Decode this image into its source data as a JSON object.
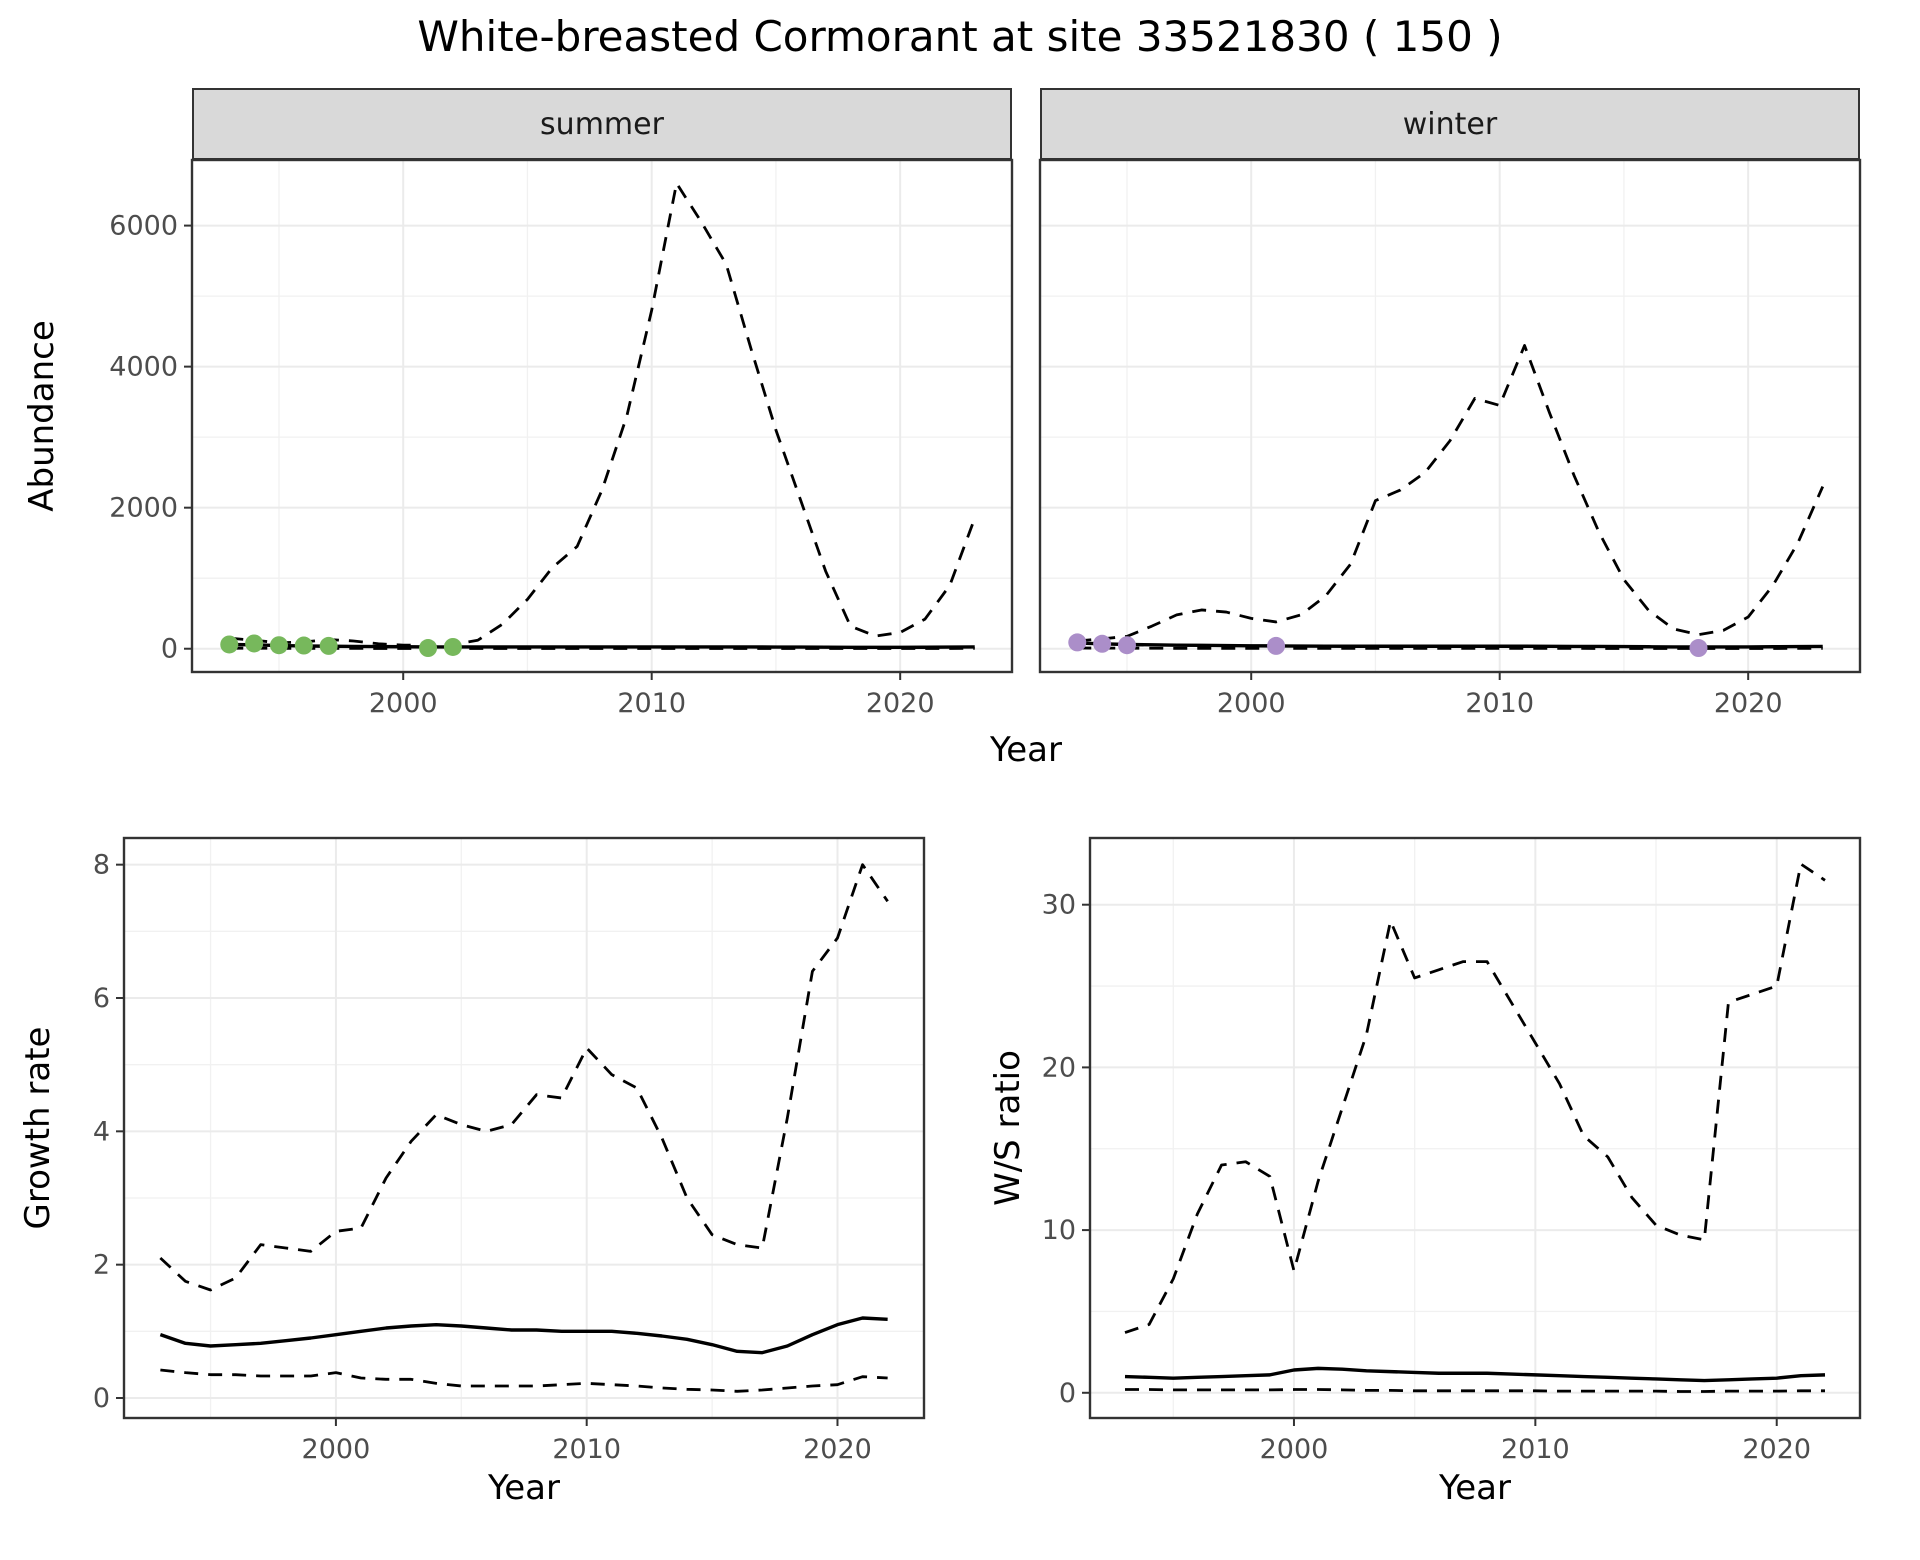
{
  "title": "White-breasted Cormorant at site 33521830 ( 150 )",
  "colors": {
    "summer_points": "#77b85c",
    "winter_points": "#ab8ec9",
    "line": "#000000",
    "strip_bg": "#d9d9d9",
    "grid_major": "#ebebeb",
    "grid_minor": "#f1f1f1",
    "panel_border": "#333333",
    "tick_label": "#4d4d4d"
  },
  "chart_data": [
    {
      "id": "abundance",
      "type": "line",
      "xlabel": "Year",
      "ylabel": "Abundance",
      "xlim": [
        1991.5,
        2024.5
      ],
      "ylim": [
        -330,
        6930
      ],
      "xticks": [
        2000,
        2010,
        2020
      ],
      "yticks": [
        0,
        2000,
        4000,
        6000
      ],
      "grid": true,
      "legend": "none",
      "years": [
        1993,
        1994,
        1995,
        1996,
        1997,
        1998,
        1999,
        2000,
        2001,
        2002,
        2003,
        2004,
        2005,
        2006,
        2007,
        2008,
        2009,
        2010,
        2011,
        2012,
        2013,
        2014,
        2015,
        2016,
        2017,
        2018,
        2019,
        2020,
        2021,
        2022,
        2023
      ],
      "panels": [
        {
          "label": "summer",
          "series": [
            {
              "name": "upper-ci",
              "style": "dashed",
              "values": [
                150,
                120,
                85,
                95,
                130,
                110,
                70,
                50,
                55,
                60,
                120,
                350,
                700,
                1150,
                1450,
                2250,
                3300,
                4800,
                6600,
                6050,
                5450,
                4250,
                3100,
                2100,
                1100,
                320,
                180,
                230,
                420,
                900,
                1850
              ]
            },
            {
              "name": "estimate",
              "style": "solid",
              "values": [
                60,
                55,
                45,
                40,
                35,
                32,
                30,
                28,
                26,
                25,
                25,
                25,
                25,
                25,
                25,
                25,
                25,
                25,
                25,
                25,
                25,
                25,
                24,
                23,
                22,
                20,
                20,
                20,
                21,
                23,
                25
              ]
            },
            {
              "name": "lower-ci",
              "style": "dashed",
              "values": [
                8,
                7,
                6,
                5,
                5,
                5,
                4,
                4,
                4,
                4,
                4,
                4,
                4,
                4,
                4,
                4,
                4,
                4,
                4,
                4,
                4,
                4,
                4,
                4,
                3,
                3,
                3,
                3,
                3,
                4,
                5
              ]
            }
          ],
          "points": {
            "name": "observed-counts",
            "color": "#77b85c",
            "data": [
              [
                1993,
                60
              ],
              [
                1994,
                75
              ],
              [
                1995,
                50
              ],
              [
                1996,
                45
              ],
              [
                1997,
                40
              ],
              [
                2001,
                10
              ],
              [
                2002,
                25
              ]
            ]
          }
        },
        {
          "label": "winter",
          "series": [
            {
              "name": "upper-ci",
              "style": "dashed",
              "values": [
                110,
                140,
                175,
                320,
                480,
                550,
                520,
                430,
                380,
                480,
                750,
                1200,
                2100,
                2250,
                2500,
                2950,
                3550,
                3450,
                4300,
                3350,
                2450,
                1650,
                980,
                540,
                280,
                200,
                260,
                450,
                900,
                1500,
                2300
              ]
            },
            {
              "name": "estimate",
              "style": "solid",
              "values": [
                80,
                70,
                60,
                55,
                50,
                48,
                45,
                42,
                40,
                38,
                36,
                35,
                35,
                35,
                35,
                35,
                35,
                35,
                35,
                34,
                33,
                32,
                30,
                28,
                26,
                25,
                25,
                26,
                28,
                30,
                32
              ]
            },
            {
              "name": "lower-ci",
              "style": "dashed",
              "values": [
                10,
                9,
                8,
                7,
                6,
                6,
                5,
                5,
                5,
                5,
                5,
                5,
                5,
                5,
                5,
                5,
                5,
                5,
                5,
                5,
                5,
                4,
                4,
                4,
                4,
                3,
                3,
                4,
                4,
                5,
                6
              ]
            }
          ],
          "points": {
            "name": "observed-counts",
            "color": "#ab8ec9",
            "data": [
              [
                1993,
                90
              ],
              [
                1994,
                70
              ],
              [
                1995,
                50
              ],
              [
                2001,
                40
              ],
              [
                2018,
                10
              ]
            ]
          }
        }
      ]
    },
    {
      "id": "growth-rate",
      "type": "line",
      "xlabel": "Year",
      "ylabel": "Growth rate",
      "xlim": [
        1991.55,
        2023.45
      ],
      "ylim": [
        -0.3,
        8.4
      ],
      "xticks": [
        2000,
        2010,
        2020
      ],
      "yticks": [
        0,
        2,
        4,
        6,
        8
      ],
      "grid": true,
      "legend": "none",
      "years": [
        1993,
        1994,
        1995,
        1996,
        1997,
        1998,
        1999,
        2000,
        2001,
        2002,
        2003,
        2004,
        2005,
        2006,
        2007,
        2008,
        2009,
        2010,
        2011,
        2012,
        2013,
        2014,
        2015,
        2016,
        2017,
        2018,
        2019,
        2020,
        2021,
        2022
      ],
      "series": [
        {
          "name": "upper-ci",
          "style": "dashed",
          "values": [
            2.1,
            1.75,
            1.62,
            1.8,
            2.3,
            2.25,
            2.2,
            2.5,
            2.55,
            3.3,
            3.85,
            4.25,
            4.1,
            4.0,
            4.1,
            4.55,
            4.5,
            5.25,
            4.85,
            4.65,
            3.9,
            3.0,
            2.45,
            2.3,
            2.25,
            4.2,
            6.4,
            6.9,
            8.0,
            7.45
          ]
        },
        {
          "name": "estimate",
          "style": "solid",
          "values": [
            0.95,
            0.82,
            0.78,
            0.8,
            0.82,
            0.86,
            0.9,
            0.95,
            1.0,
            1.05,
            1.08,
            1.1,
            1.08,
            1.05,
            1.02,
            1.02,
            1.0,
            1.0,
            1.0,
            0.97,
            0.93,
            0.88,
            0.8,
            0.7,
            0.68,
            0.78,
            0.95,
            1.1,
            1.2,
            1.18
          ]
        },
        {
          "name": "lower-ci",
          "style": "dashed",
          "values": [
            0.42,
            0.38,
            0.35,
            0.35,
            0.33,
            0.33,
            0.33,
            0.38,
            0.3,
            0.28,
            0.28,
            0.22,
            0.18,
            0.18,
            0.18,
            0.18,
            0.2,
            0.22,
            0.2,
            0.18,
            0.15,
            0.13,
            0.12,
            0.1,
            0.12,
            0.15,
            0.18,
            0.2,
            0.32,
            0.3
          ]
        }
      ]
    },
    {
      "id": "ws-ratio",
      "type": "line",
      "xlabel": "Year",
      "ylabel": "W/S ratio",
      "xlim": [
        1991.55,
        2023.45
      ],
      "ylim": [
        -1.55,
        34.1
      ],
      "xticks": [
        2000,
        2010,
        2020
      ],
      "yticks": [
        0,
        10,
        20,
        30
      ],
      "grid": true,
      "legend": "none",
      "years": [
        1993,
        1994,
        1995,
        1996,
        1997,
        1998,
        1999,
        2000,
        2001,
        2002,
        2003,
        2004,
        2005,
        2006,
        2007,
        2008,
        2009,
        2010,
        2011,
        2012,
        2013,
        2014,
        2015,
        2016,
        2017,
        2018,
        2019,
        2020,
        2021,
        2022
      ],
      "series": [
        {
          "name": "upper-ci",
          "style": "dashed",
          "values": [
            3.7,
            4.2,
            7.0,
            11.0,
            14.0,
            14.2,
            13.3,
            7.5,
            13.0,
            17.5,
            22.0,
            29.0,
            25.5,
            26.0,
            26.5,
            26.5,
            24.0,
            21.5,
            19.0,
            15.8,
            14.5,
            12.0,
            10.3,
            9.7,
            9.4,
            24.0,
            24.5,
            25.0,
            32.5,
            31.5
          ]
        },
        {
          "name": "estimate",
          "style": "solid",
          "values": [
            1.0,
            0.95,
            0.9,
            0.95,
            1.0,
            1.05,
            1.1,
            1.4,
            1.5,
            1.45,
            1.35,
            1.3,
            1.25,
            1.2,
            1.2,
            1.2,
            1.15,
            1.1,
            1.05,
            1.0,
            0.95,
            0.9,
            0.85,
            0.8,
            0.75,
            0.8,
            0.85,
            0.9,
            1.05,
            1.1
          ]
        },
        {
          "name": "lower-ci",
          "style": "dashed",
          "values": [
            0.2,
            0.2,
            0.18,
            0.18,
            0.18,
            0.18,
            0.18,
            0.2,
            0.2,
            0.18,
            0.15,
            0.15,
            0.12,
            0.12,
            0.12,
            0.12,
            0.12,
            0.12,
            0.1,
            0.1,
            0.1,
            0.1,
            0.1,
            0.08,
            0.08,
            0.1,
            0.1,
            0.1,
            0.12,
            0.12
          ]
        }
      ]
    }
  ]
}
